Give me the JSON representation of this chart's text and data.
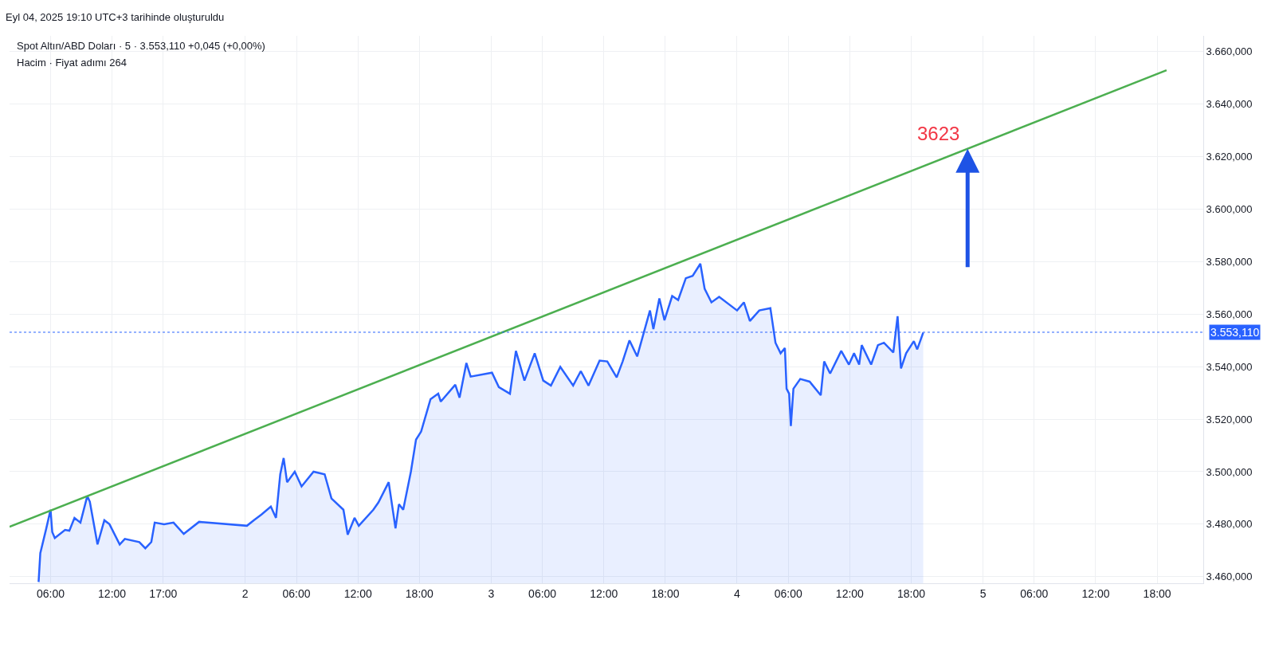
{
  "chart_data": {
    "type": "area",
    "title": "Spot Altın/ABD Doları · 5 · 3.553,110 +0,045 (+0,00%)",
    "subtitle": "Hacim · Fiyat adımı 264",
    "annotations": [
      "Eyl 04, 2025 19:10 UTC+3 tarihinde oluşturuldu",
      {
        "text": "3623",
        "x": "2025-09-04T23:30",
        "y": 3623
      }
    ],
    "x": [
      "2025-09-01T04:50",
      "2025-09-01T05:00",
      "2025-09-01T05:35",
      "2025-09-01T06:00",
      "2025-09-01T06:10",
      "2025-09-01T06:25",
      "2025-09-01T07:25",
      "2025-09-01T07:50",
      "2025-09-01T08:20",
      "2025-09-01T08:55",
      "2025-09-01T09:35",
      "2025-09-01T09:50",
      "2025-09-01T10:35",
      "2025-09-01T11:15",
      "2025-09-01T11:45",
      "2025-09-01T12:45",
      "2025-09-01T13:15",
      "2025-09-01T14:40",
      "2025-09-01T15:15",
      "2025-09-01T15:50",
      "2025-09-01T16:10",
      "2025-09-01T17:05",
      "2025-09-01T18:00",
      "2025-09-01T19:00",
      "2025-09-01T20:30",
      "2025-09-02T01:10",
      "2025-09-02T01:50",
      "2025-09-02T02:35",
      "2025-09-02T03:30",
      "2025-09-02T04:00",
      "2025-09-02T04:25",
      "2025-09-02T04:45",
      "2025-09-02T05:05",
      "2025-09-02T05:50",
      "2025-09-02T06:30",
      "2025-09-02T07:40",
      "2025-09-02T08:45",
      "2025-09-02T09:25",
      "2025-09-02T10:35",
      "2025-09-02T11:00",
      "2025-09-02T11:40",
      "2025-09-02T12:05",
      "2025-09-02T13:30",
      "2025-09-02T14:00",
      "2025-09-02T15:00",
      "2025-09-02T15:40",
      "2025-09-02T16:00",
      "2025-09-02T16:25",
      "2025-09-02T17:10",
      "2025-09-02T17:40",
      "2025-09-02T18:10",
      "2025-09-02T19:05",
      "2025-09-02T19:50",
      "2025-09-02T20:05",
      "2025-09-02T21:30",
      "2025-09-02T21:55",
      "2025-09-02T22:35",
      "2025-09-02T23:00",
      "2025-09-03T01:05",
      "2025-09-03T01:45",
      "2025-09-03T02:50",
      "2025-09-03T03:25",
      "2025-09-03T04:15",
      "2025-09-03T05:15",
      "2025-09-03T06:05",
      "2025-09-03T06:50",
      "2025-09-03T07:45",
      "2025-09-03T09:00",
      "2025-09-03T09:45",
      "2025-09-03T10:30",
      "2025-09-03T11:35",
      "2025-09-03T12:20",
      "2025-09-03T13:15",
      "2025-09-03T13:50",
      "2025-09-03T14:30",
      "2025-09-03T15:15",
      "2025-09-03T16:30",
      "2025-09-03T16:50",
      "2025-09-03T17:25",
      "2025-09-03T17:55",
      "2025-09-03T18:40",
      "2025-09-03T19:15",
      "2025-09-03T20:00",
      "2025-09-03T20:40",
      "2025-09-03T21:25",
      "2025-09-03T21:50",
      "2025-09-03T22:30",
      "2025-09-03T23:15",
      "2025-09-04T01:00",
      "2025-09-04T01:40",
      "2025-09-04T02:15",
      "2025-09-04T03:10",
      "2025-09-04T04:15",
      "2025-09-04T04:45",
      "2025-09-04T05:15",
      "2025-09-04T05:40",
      "2025-09-04T05:50",
      "2025-09-04T06:05",
      "2025-09-04T06:15",
      "2025-09-04T06:30",
      "2025-09-04T07:10",
      "2025-09-04T08:05",
      "2025-09-04T09:10",
      "2025-09-04T09:30",
      "2025-09-04T10:05",
      "2025-09-04T11:10",
      "2025-09-04T11:55",
      "2025-09-04T12:25",
      "2025-09-04T12:55",
      "2025-09-04T13:10",
      "2025-09-04T14:05",
      "2025-09-04T14:45",
      "2025-09-04T15:20",
      "2025-09-04T16:15",
      "2025-09-04T16:40",
      "2025-09-04T17:00",
      "2025-09-04T17:30",
      "2025-09-04T18:15",
      "2025-09-04T18:35",
      "2025-09-04T19:10"
    ],
    "series": [
      {
        "color": "#2962ff",
        "values": [
          3458,
          3469,
          3478.4,
          3485.5,
          3477,
          3474.7,
          3477.8,
          3477.5,
          3482.4,
          3480.6,
          3490.7,
          3488.6,
          3472.3,
          3481.5,
          3480,
          3472.3,
          3474.4,
          3473.2,
          3470.8,
          3473.2,
          3480.6,
          3480,
          3480.6,
          3476.3,
          3480.9,
          3479.4,
          3481.5,
          3483.7,
          3486.7,
          3482.4,
          3499,
          3505.2,
          3496,
          3500,
          3494.4,
          3500,
          3499,
          3489.8,
          3485.5,
          3476,
          3482.4,
          3479.4,
          3485.5,
          3488.3,
          3496,
          3478.4,
          3487.6,
          3485.5,
          3500,
          3512.2,
          3515.3,
          3527.6,
          3529.7,
          3526.7,
          3533.1,
          3528.2,
          3541.4,
          3536.2,
          3537.7,
          3532.2,
          3529.7,
          3546,
          3534.7,
          3545.1,
          3534.7,
          3532.8,
          3539.9,
          3532.8,
          3538.3,
          3532.8,
          3542.3,
          3542,
          3535.9,
          3542,
          3550,
          3543.9,
          3561.4,
          3554.3,
          3566,
          3557.7,
          3566.9,
          3565.4,
          3573.7,
          3574.6,
          3579.2,
          3569.7,
          3564.5,
          3566.6,
          3561.4,
          3564.5,
          3557.4,
          3561.4,
          3562.3,
          3549.1,
          3545.1,
          3547.1,
          3531.6,
          3529.7,
          3517.4,
          3531.6,
          3535.3,
          3534.3,
          3529.1,
          3542,
          3537.4,
          3546,
          3540.8,
          3545.1,
          3540.8,
          3548.2,
          3540.8,
          3548.2,
          3549.1,
          3545.4,
          3559.2,
          3539.3,
          3545.1,
          3549.7,
          3546.6,
          3553
        ]
      },
      {
        "type": "line",
        "color": "#4caf50",
        "x": [
          "2025-09-01T02:00",
          "2025-09-05T18:55"
        ],
        "values": [
          3479,
          3652.9
        ]
      }
    ],
    "ref_lines": [
      {
        "axis": "y",
        "value": 3553.11,
        "label": "3.553,110",
        "color": "#2962ff",
        "line_style": "dotted"
      }
    ],
    "xlim": [
      "2025-09-01T02:00",
      "2025-09-05T22:30"
    ],
    "xticks": [
      {
        "value": "2025-09-01T06:00",
        "label": "06:00"
      },
      {
        "value": "2025-09-01T12:00",
        "label": "12:00"
      },
      {
        "value": "2025-09-01T17:00",
        "label": "17:00"
      },
      {
        "value": "2025-09-02T01:00",
        "label": "2"
      },
      {
        "value": "2025-09-02T06:00",
        "label": "06:00"
      },
      {
        "value": "2025-09-02T12:00",
        "label": "12:00"
      },
      {
        "value": "2025-09-02T18:00",
        "label": "18:00"
      },
      {
        "value": "2025-09-03T01:00",
        "label": "3"
      },
      {
        "value": "2025-09-03T06:00",
        "label": "06:00"
      },
      {
        "value": "2025-09-03T12:00",
        "label": "12:00"
      },
      {
        "value": "2025-09-03T18:00",
        "label": "18:00"
      },
      {
        "value": "2025-09-04T01:00",
        "label": "4"
      },
      {
        "value": "2025-09-04T06:00",
        "label": "06:00"
      },
      {
        "value": "2025-09-04T12:00",
        "label": "12:00"
      },
      {
        "value": "2025-09-04T18:00",
        "label": "18:00"
      },
      {
        "value": "2025-09-05T01:00",
        "label": "5"
      },
      {
        "value": "2025-09-05T06:00",
        "label": "06:00"
      },
      {
        "value": "2025-09-05T12:00",
        "label": "12:00"
      },
      {
        "value": "2025-09-05T18:00",
        "label": "18:00"
      }
    ],
    "ylim": [
      3457.5,
      3666
    ],
    "yticks": [
      {
        "value": 3460,
        "label": "3.460,000"
      },
      {
        "value": 3480,
        "label": "3.480,000"
      },
      {
        "value": 3500,
        "label": "3.500,000"
      },
      {
        "value": 3520,
        "label": "3.520,000"
      },
      {
        "value": 3540,
        "label": "3.540,000"
      },
      {
        "value": 3560,
        "label": "3.560,000"
      },
      {
        "value": 3580,
        "label": "3.580,000"
      },
      {
        "value": 3600,
        "label": "3.600,000"
      },
      {
        "value": 3620,
        "label": "3.620,000"
      },
      {
        "value": 3640,
        "label": "3.640,000"
      },
      {
        "value": 3660,
        "label": "3.660,000"
      }
    ],
    "grid": true,
    "marker": "none",
    "line_style": "solid"
  }
}
